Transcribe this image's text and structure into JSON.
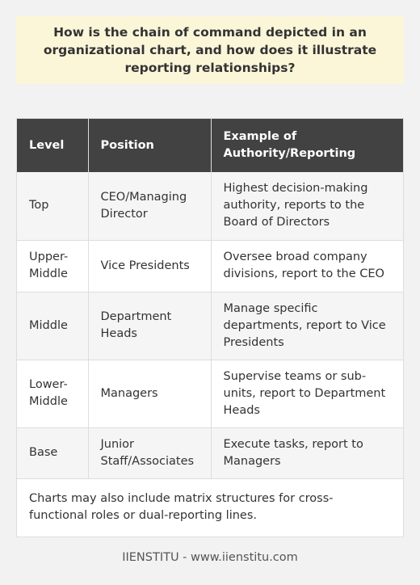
{
  "question": "How is the chain of command depicted in an organizational chart, and how does it illustrate reporting relationships?",
  "table": {
    "headers": [
      "Level",
      "Position",
      "Example of Authority/Reporting"
    ],
    "rows": [
      [
        "Top",
        "CEO/Managing Director",
        "Highest decision-making authority, reports to the Board of Directors"
      ],
      [
        "Upper-Middle",
        "Vice Presidents",
        "Oversee broad company divisions, report to the CEO"
      ],
      [
        "Middle",
        "Department Heads",
        "Manage specific departments, report to Vice Presidents"
      ],
      [
        "Lower-Middle",
        "Managers",
        "Supervise teams or sub-units, report to Department Heads"
      ],
      [
        "Base",
        "Junior Staff/Associates",
        "Execute tasks, report to Managers"
      ]
    ],
    "note": "Charts may also include matrix structures for cross-functional roles or dual-reporting lines."
  },
  "footer": "IIENSTITU - www.iienstitu.com",
  "colors": {
    "background": "#f2f2f2",
    "question_bg": "#fcf6d9",
    "header_bg": "#424242",
    "header_text": "#ffffff",
    "row_alt_bg": "#f5f5f5"
  }
}
